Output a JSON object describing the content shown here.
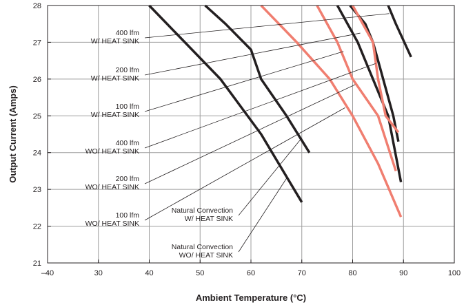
{
  "chart_data": {
    "type": "line",
    "title": "",
    "xlabel": "Ambient Temperature (°C)",
    "ylabel": "Output Current (Amps)",
    "xlim": [
      -40,
      100
    ],
    "ylim": [
      21,
      28
    ],
    "x_tick_labels": [
      "–40",
      "30",
      "40",
      "50",
      "60",
      "70",
      "80",
      "90",
      "100"
    ],
    "y_ticks": [
      21,
      22,
      23,
      24,
      25,
      26,
      27,
      28
    ],
    "grid": true,
    "legend": "none",
    "colors": {
      "black_series": "#231f20",
      "red_series": "#f07e70",
      "grid": "#9d9d9d"
    },
    "series": [
      {
        "color": "black",
        "points": [
          [
            40,
            28
          ],
          [
            47,
            27
          ],
          [
            54,
            26
          ],
          [
            62,
            24.5
          ],
          [
            70,
            22.65
          ]
        ]
      },
      {
        "color": "black",
        "points": [
          [
            51,
            28
          ],
          [
            55,
            27.5
          ],
          [
            60,
            26.8
          ],
          [
            62,
            26
          ],
          [
            67,
            25
          ],
          [
            71.5,
            24
          ]
        ]
      },
      {
        "color": "red",
        "points": [
          [
            62,
            28
          ],
          [
            69,
            27
          ],
          [
            75.5,
            26
          ],
          [
            80,
            25
          ],
          [
            85,
            23.7
          ],
          [
            89.5,
            22.25
          ]
        ]
      },
      {
        "color": "red",
        "points": [
          [
            73,
            28
          ],
          [
            77,
            27
          ],
          [
            80,
            26
          ],
          [
            85,
            25
          ],
          [
            88.5,
            23.5
          ]
        ]
      },
      {
        "color": "black",
        "points": [
          [
            77,
            28
          ],
          [
            81,
            27
          ],
          [
            84,
            26
          ],
          [
            87,
            25
          ],
          [
            89.5,
            23.2
          ]
        ]
      },
      {
        "color": "black",
        "points": [
          [
            79.5,
            28
          ],
          [
            82.5,
            27.5
          ],
          [
            84,
            27
          ],
          [
            86,
            26
          ],
          [
            88,
            25
          ],
          [
            89,
            24.3
          ]
        ]
      },
      {
        "color": "red",
        "points": [
          [
            80,
            28
          ],
          [
            84,
            27
          ],
          [
            85,
            26
          ],
          [
            86.5,
            25
          ],
          [
            89,
            24.55
          ]
        ]
      },
      {
        "color": "black",
        "points": [
          [
            87,
            28
          ],
          [
            88.5,
            27.5
          ],
          [
            91.5,
            26.6
          ]
        ]
      }
    ],
    "annotations": [
      {
        "lines": [
          "400 lfm",
          "W/ HEAT SINK"
        ],
        "target": [
          87.2,
          27.78
        ]
      },
      {
        "lines": [
          "200 lfm",
          "W/ HEAT SINK"
        ],
        "target": [
          81.5,
          27.25
        ]
      },
      {
        "lines": [
          "100 lfm",
          "W/ HEAT SINK"
        ],
        "target": [
          78.2,
          26.75
        ]
      },
      {
        "lines": [
          "400 lfm",
          "WO/ HEAT SINK"
        ],
        "target": [
          84.5,
          26.42
        ]
      },
      {
        "lines": [
          "200 lfm",
          "WO/ HEAT SINK"
        ],
        "target": [
          80.5,
          25.85
        ]
      },
      {
        "lines": [
          "100 lfm",
          "WO/ HEAT SINK"
        ],
        "target": [
          78.5,
          25.22
        ]
      },
      {
        "lines": [
          "Natural Convection",
          "W/ HEAT SINK"
        ],
        "target": [
          70,
          24.4
        ]
      },
      {
        "lines": [
          "Natural Convection",
          "WO/ HEAT SINK"
        ],
        "target": [
          67,
          23.3
        ]
      }
    ]
  }
}
